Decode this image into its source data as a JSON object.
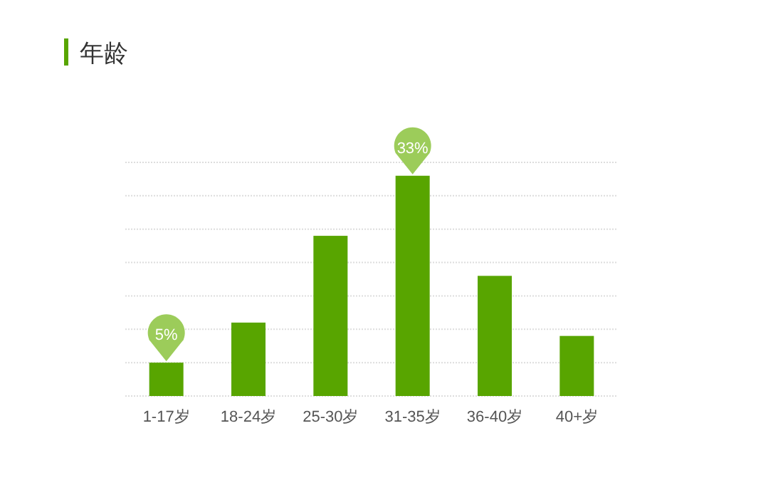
{
  "chart_data": {
    "type": "bar",
    "title": "年龄",
    "categories": [
      "1-17岁",
      "18-24岁",
      "25-30岁",
      "31-35岁",
      "36-40岁",
      "40+岁"
    ],
    "values": [
      5,
      11,
      24,
      33,
      18,
      9
    ],
    "value_labels": [
      "5%",
      null,
      null,
      "33%",
      null,
      null
    ],
    "color": "#58a500",
    "ylim": [
      0,
      35
    ],
    "yticks": [
      {
        "value": 0,
        "label": null
      },
      {
        "value": 5,
        "label": null
      },
      {
        "value": 10,
        "label": null
      },
      {
        "value": 15,
        "label": null
      },
      {
        "value": 20,
        "label": null
      },
      {
        "value": 25,
        "label": null
      },
      {
        "value": 30,
        "label": null
      },
      {
        "value": 35,
        "label": null
      }
    ],
    "grid": "y",
    "legend": false
  }
}
